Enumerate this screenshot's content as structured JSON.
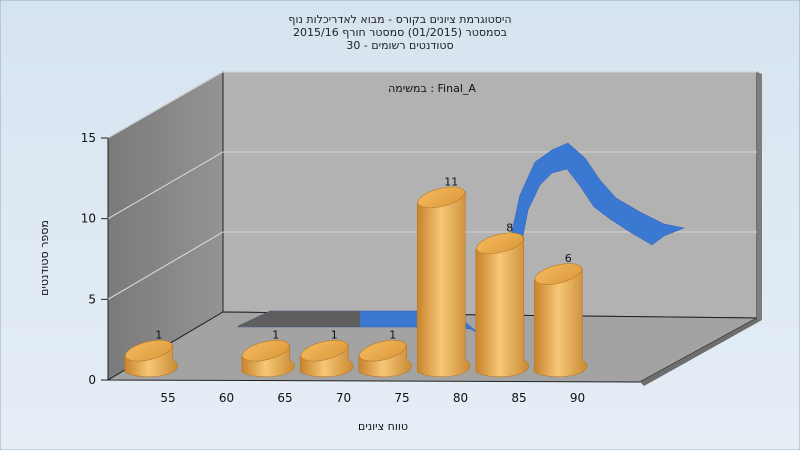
{
  "chart_data": {
    "type": "bar",
    "title_lines": [
      "היסטוגרמת ציונים בקורס - מבוא לאדריכלות נוף",
      "בסמסטר  (01/2015)  סמסטר חורף 2015/16",
      "סטודנטים רשומים - 30"
    ],
    "inner_label": "במשימה : Final_A",
    "xlabel": "טווח ציונים",
    "ylabel": "מספר סטודנטים",
    "x_ticks": [
      "55",
      "60",
      "65",
      "70",
      "75",
      "80",
      "85",
      "90"
    ],
    "y_ticks": [
      "0",
      "5",
      "10",
      "15"
    ],
    "ylim": [
      0,
      15
    ],
    "categories": [
      "50-55",
      "55-60",
      "60-65",
      "65-70",
      "70-75",
      "75-80",
      "80-85",
      "85-90",
      "90-95"
    ],
    "values": [
      1,
      0,
      1,
      1,
      1,
      11,
      8,
      6,
      0
    ],
    "data_labels": [
      "1",
      "",
      "1",
      "1",
      "1",
      "11",
      "8",
      "6",
      ""
    ],
    "grid": true,
    "colors": {
      "bar": "#e8a84a",
      "curve": "#3a78d0",
      "back_wall": "#b3b3b3",
      "side_wall": "#888888",
      "floor": "#a0a0a0",
      "background": "#dce8f2"
    }
  }
}
